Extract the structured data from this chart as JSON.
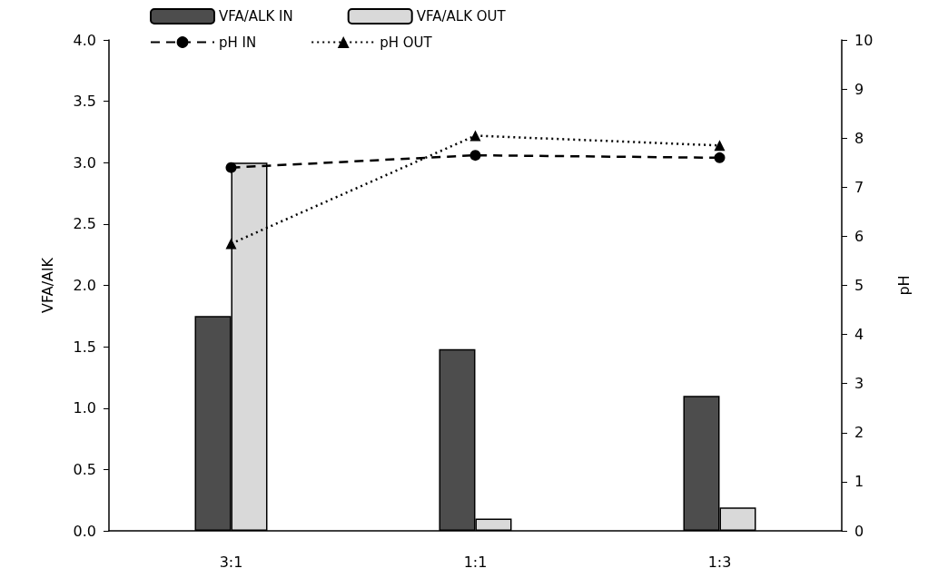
{
  "chart_data": {
    "type": "bar",
    "ylabel": "VFA/AlK",
    "y2label": "pH",
    "categories": [
      "3:1",
      "1:1",
      "1:3"
    ],
    "series": [
      {
        "name": "VFA/ALK IN",
        "color": "#4d4d4d",
        "values": [
          1.75,
          1.48,
          1.1
        ]
      },
      {
        "name": "VFA/ALK OUT",
        "color": "#d9d9d9",
        "values": [
          3.0,
          0.1,
          0.19
        ]
      },
      {
        "name": "pH IN",
        "type": "line",
        "axis": "y2",
        "color": "#000000",
        "marker": "circle",
        "line_style": "dashed",
        "values": [
          7.4,
          7.65,
          7.6
        ]
      },
      {
        "name": "pH OUT",
        "type": "line",
        "axis": "y2",
        "color": "#000000",
        "marker": "triangle",
        "line_style": "dotted",
        "values": [
          5.85,
          8.05,
          7.85
        ]
      }
    ],
    "ylim": [
      0,
      4
    ],
    "yticks": [
      {
        "value": 0,
        "label": "0.0"
      },
      {
        "value": 0.5,
        "label": "0.5"
      },
      {
        "value": 1,
        "label": "1.0"
      },
      {
        "value": 1.5,
        "label": "1.5"
      },
      {
        "value": 2,
        "label": "2.0"
      },
      {
        "value": 2.5,
        "label": "2.5"
      },
      {
        "value": 3,
        "label": "3.0"
      },
      {
        "value": 3.5,
        "label": "3.5"
      },
      {
        "value": 4,
        "label": "4.0"
      }
    ],
    "y2lim": [
      0,
      10
    ],
    "y2ticks": [
      0,
      1,
      2,
      3,
      4,
      5,
      6,
      7,
      8,
      9,
      10
    ],
    "grid": false,
    "legend": "top"
  }
}
